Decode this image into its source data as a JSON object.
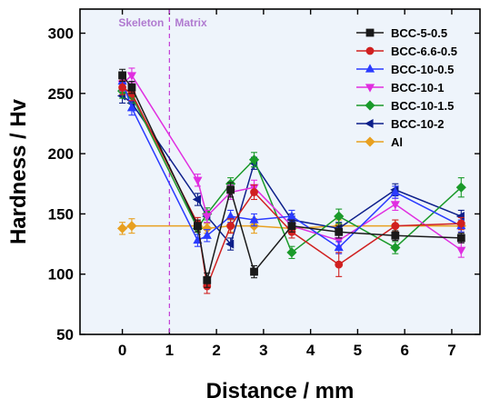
{
  "chart_data": {
    "type": "line",
    "xlabel": "Distance / mm",
    "ylabel": "Hardness / Hv",
    "xlim": [
      -0.9,
      7.6
    ],
    "ylim": [
      50,
      320
    ],
    "xticks": [
      0,
      1,
      2,
      3,
      4,
      5,
      6,
      7
    ],
    "yticks": [
      50,
      100,
      150,
      200,
      250,
      300
    ],
    "grid": false,
    "legend_position": "top-right",
    "background": "#eef4fb",
    "divider": {
      "x": 1.0,
      "color": "#c23bd6"
    },
    "region_labels": {
      "left": "Skeleton",
      "right": "Matrix"
    },
    "series": [
      {
        "name": "BCC-5-0.5",
        "color": "#1a1a1a",
        "marker": "square",
        "x": [
          0,
          0.2,
          1.6,
          1.8,
          2.3,
          2.8,
          3.6,
          4.6,
          5.8,
          7.2
        ],
        "y": [
          265,
          255,
          140,
          95,
          170,
          102,
          140,
          135,
          132,
          130
        ],
        "err": [
          5,
          5,
          5,
          6,
          6,
          5,
          5,
          5,
          4,
          4
        ]
      },
      {
        "name": "BCC-6.6-0.5",
        "color": "#d02020",
        "marker": "circle",
        "x": [
          0,
          0.2,
          1.6,
          1.8,
          2.3,
          2.8,
          3.6,
          4.6,
          5.8,
          7.2
        ],
        "y": [
          255,
          250,
          142,
          90,
          140,
          168,
          135,
          108,
          140,
          142
        ],
        "err": [
          6,
          6,
          5,
          6,
          6,
          6,
          5,
          10,
          5,
          5
        ]
      },
      {
        "name": "BCC-10-0.5",
        "color": "#2a3bff",
        "marker": "triangle-up",
        "x": [
          0,
          0.2,
          1.6,
          1.8,
          2.3,
          2.8,
          3.6,
          4.6,
          5.8,
          7.2
        ],
        "y": [
          260,
          238,
          128,
          132,
          148,
          145,
          148,
          122,
          168,
          140
        ],
        "err": [
          6,
          6,
          5,
          5,
          5,
          5,
          5,
          5,
          5,
          5
        ]
      },
      {
        "name": "BCC-10-1",
        "color": "#e02ee0",
        "marker": "triangle-down",
        "x": [
          0,
          0.2,
          1.6,
          1.8,
          2.3,
          2.8,
          3.6,
          4.6,
          5.8,
          7.2
        ],
        "y": [
          258,
          265,
          178,
          148,
          168,
          172,
          140,
          128,
          158,
          120
        ],
        "err": [
          6,
          6,
          5,
          5,
          6,
          6,
          5,
          5,
          5,
          6
        ]
      },
      {
        "name": "BCC-10-1.5",
        "color": "#1a9a2a",
        "marker": "diamond",
        "x": [
          0,
          0.2,
          1.6,
          1.8,
          2.3,
          2.8,
          3.6,
          4.6,
          5.8,
          7.2
        ],
        "y": [
          252,
          248,
          138,
          150,
          175,
          195,
          118,
          148,
          122,
          172
        ],
        "err": [
          6,
          6,
          5,
          5,
          5,
          6,
          5,
          6,
          5,
          8
        ]
      },
      {
        "name": "BCC-10-2",
        "color": "#0d1f8a",
        "marker": "triangle-left",
        "x": [
          0,
          0.2,
          1.6,
          1.8,
          2.3,
          2.8,
          3.6,
          4.6,
          5.8,
          7.2
        ],
        "y": [
          248,
          242,
          162,
          148,
          125,
          192,
          145,
          138,
          170,
          148
        ],
        "err": [
          6,
          6,
          5,
          5,
          5,
          5,
          5,
          5,
          5,
          5
        ]
      },
      {
        "name": "Al",
        "color": "#e8a020",
        "marker": "diamond",
        "x": [
          0,
          0.2,
          1.6,
          1.8,
          2.3,
          2.8,
          3.6,
          4.6,
          5.8,
          7.2
        ],
        "y": [
          138,
          140,
          140,
          138,
          140,
          140,
          138,
          140,
          140,
          140
        ],
        "err": [
          5,
          6,
          5,
          4,
          5,
          6,
          4,
          5,
          5,
          5
        ]
      }
    ]
  }
}
